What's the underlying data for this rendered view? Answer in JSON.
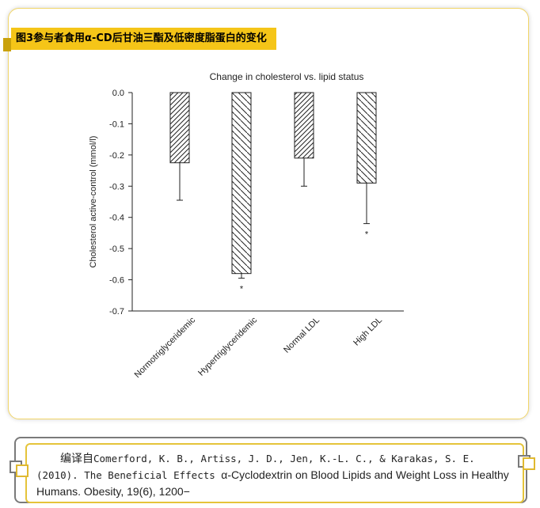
{
  "header": {
    "caption": "图3参与者食用α-CD后甘油三酯及低密度脂蛋白的变化"
  },
  "colors": {
    "accent": "#f5c518",
    "border": "#f1d66a",
    "citation_outer": "#7a7a7a",
    "citation_inner": "#e5c43a"
  },
  "chart_data": {
    "type": "bar",
    "title": "Change in cholesterol vs. lipid status",
    "xlabel": "",
    "ylabel": "Cholesterol active-control (mmol/l)",
    "ylim": [
      -0.7,
      0.0
    ],
    "yticks": [
      "0.0",
      "-0.1",
      "-0.2",
      "-0.3",
      "-0.4",
      "-0.5",
      "-0.6",
      "-0.7"
    ],
    "grid": false,
    "categories": [
      "Normotriglyceridemic",
      "Hypertriglyceridemic",
      "Normal LDL",
      "High LDL"
    ],
    "values": [
      -0.225,
      -0.58,
      -0.21,
      -0.29
    ],
    "error_low": [
      -0.345,
      -0.595,
      -0.3,
      -0.42
    ],
    "significance": [
      "",
      "*",
      "",
      "*"
    ],
    "hatch": [
      "forward-diagonal",
      "back-diagonal",
      "forward-diagonal",
      "back-diagonal"
    ]
  },
  "citation": {
    "prefix": "编译自",
    "authors": "Comerford, K. B., Artiss, J. D., Jen, K.-L. C., & Karakas, S. E. (2010).  The Beneficial Effects ",
    "title_rest": "α-Cyclodextrin on Blood Lipids and Weight Loss in Healthy Humans. Obesity, 19(6), 1200−"
  }
}
